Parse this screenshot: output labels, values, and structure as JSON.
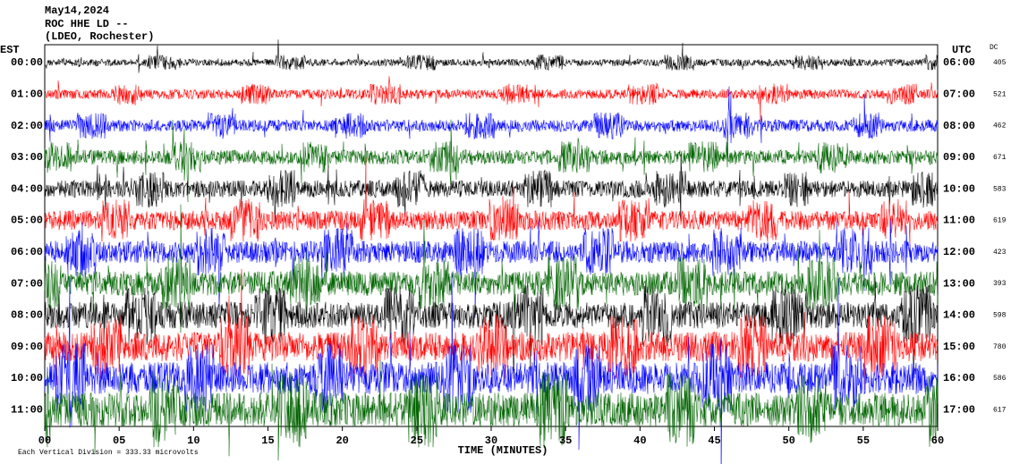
{
  "header": {
    "date": "May14,2024",
    "station": "ROC HHE LD --",
    "location": "(LDEO, Rochester)"
  },
  "left_label": "EST",
  "right_label": "UTC",
  "dc_label": "DC",
  "rows": [
    {
      "est": "00:00",
      "utc": "06:00",
      "dc": 405,
      "color": "#000000"
    },
    {
      "est": "01:00",
      "utc": "07:00",
      "dc": 521,
      "color": "#ff0000"
    },
    {
      "est": "02:00",
      "utc": "08:00",
      "dc": 462,
      "color": "#0000ff"
    },
    {
      "est": "03:00",
      "utc": "09:00",
      "dc": 671,
      "color": "#006400"
    },
    {
      "est": "04:00",
      "utc": "10:00",
      "dc": 583,
      "color": "#000000"
    },
    {
      "est": "05:00",
      "utc": "11:00",
      "dc": 619,
      "color": "#ff0000"
    },
    {
      "est": "06:00",
      "utc": "12:00",
      "dc": 423,
      "color": "#0000ff"
    },
    {
      "est": "07:00",
      "utc": "13:00",
      "dc": 393,
      "color": "#006400"
    },
    {
      "est": "08:00",
      "utc": "14:00",
      "dc": 598,
      "color": "#000000"
    },
    {
      "est": "09:00",
      "utc": "15:00",
      "dc": 780,
      "color": "#ff0000"
    },
    {
      "est": "10:00",
      "utc": "16:00",
      "dc": 586,
      "color": "#0000ff"
    },
    {
      "est": "11:00",
      "utc": "17:00",
      "dc": 617,
      "color": "#006400"
    }
  ],
  "x_axis": {
    "label": "TIME (MINUTES)",
    "lim": [
      0,
      60
    ],
    "ticks": [
      {
        "value": 0,
        "label": "00"
      },
      {
        "value": 5,
        "label": "05"
      },
      10,
      15,
      20,
      25,
      30,
      35,
      40,
      45,
      50,
      55,
      60
    ]
  },
  "footnote": "Each Vertical Division =  333.33 microvolts"
}
